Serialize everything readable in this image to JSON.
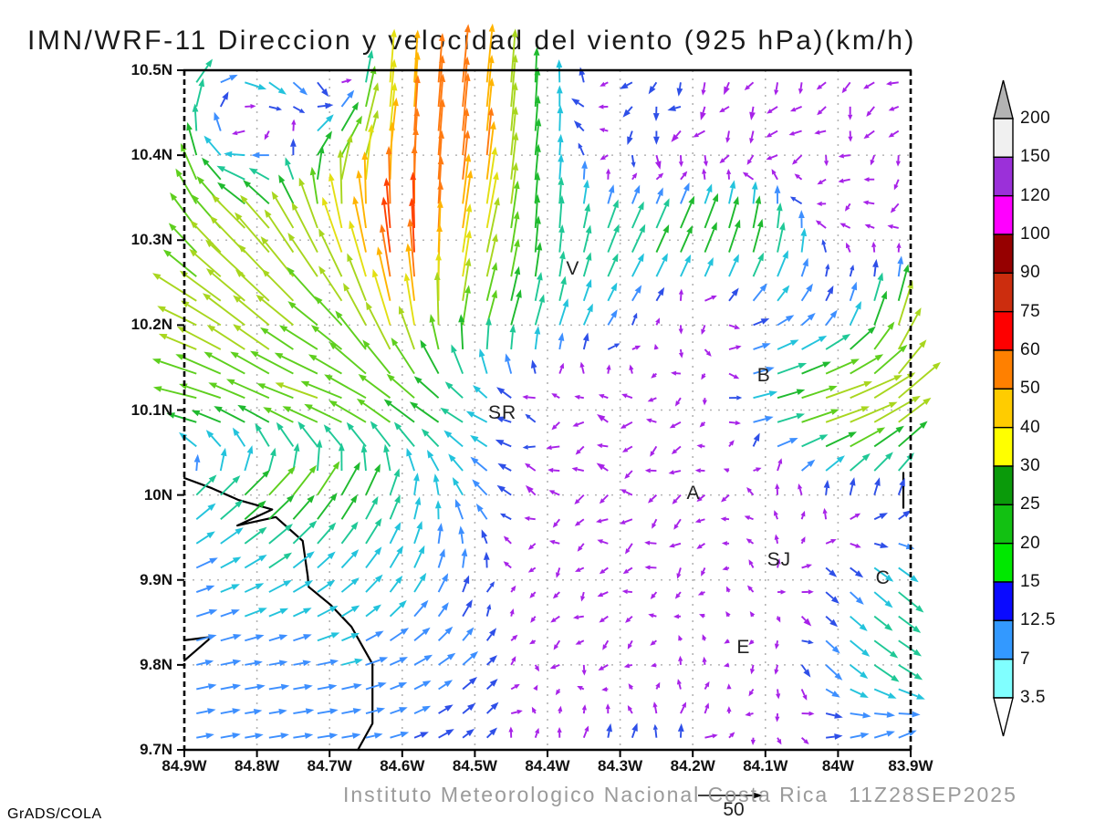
{
  "title": "IMN/WRF-11 Direccion y velocidad del viento (925 hPa)(km/h)",
  "watermark": "GrADS/COLA",
  "footer": {
    "institution": "Instituto Meteorologico Nacional Costa Rica",
    "datetime": "11Z28SEP2025"
  },
  "reference_vector": {
    "label": "50",
    "speed_kmh": 50
  },
  "chart_data": {
    "type": "vector-field",
    "description": "Wind direction and speed arrows at 925 hPa over Costa Rica, colored by speed (km/h), with dotted lat/lon grid, coastline and right-hand color scale",
    "x_axis": {
      "tick_labels": [
        "84.9W",
        "84.8W",
        "84.7W",
        "84.6W",
        "84.5W",
        "84.4W",
        "84.3W",
        "84.2W",
        "84.1W",
        "84W",
        "83.9W"
      ],
      "lon_values": [
        -84.9,
        -84.8,
        -84.7,
        -84.6,
        -84.5,
        -84.4,
        -84.3,
        -84.2,
        -84.1,
        -84.0,
        -83.9
      ],
      "range": [
        -84.9,
        -83.9
      ],
      "grid": "dotted"
    },
    "y_axis": {
      "tick_labels": [
        "10.5N",
        "10.4N",
        "10.3N",
        "10.2N",
        "10.1N",
        "10N",
        "9.9N",
        "9.8N",
        "9.7N"
      ],
      "lat_values": [
        10.5,
        10.4,
        10.3,
        10.2,
        10.1,
        10.0,
        9.9,
        9.8,
        9.7
      ],
      "range": [
        9.7,
        10.5
      ],
      "grid": "dotted"
    },
    "colorbar": {
      "labels_top_to_bottom": [
        "200",
        "150",
        "120",
        "100",
        "90",
        "75",
        "60",
        "50",
        "40",
        "30",
        "25",
        "20",
        "15",
        "12.5",
        "7",
        "3.5"
      ],
      "segment_colors_bottom_to_top": [
        "#80ffff",
        "#3399ff",
        "#0a0aff",
        "#00e800",
        "#12c112",
        "#0a9a0a",
        "#ffff00",
        "#ffcc00",
        "#ff8000",
        "#fe0000",
        "#cc2d0e",
        "#960000",
        "#ff00ff",
        "#9b30d9",
        "#f0f0f0"
      ],
      "over_arrow_color": "#b3b3b3",
      "under_arrow_color": "#ffffff",
      "outline_color": "#000000"
    },
    "arrow_speed_color_scale": [
      {
        "max_kmh": 7,
        "color": "#a722e8"
      },
      {
        "max_kmh": 11,
        "color": "#2e4fe8"
      },
      {
        "max_kmh": 14,
        "color": "#3d8fff"
      },
      {
        "max_kmh": 18,
        "color": "#23c3dc"
      },
      {
        "max_kmh": 23,
        "color": "#1fc896"
      },
      {
        "max_kmh": 28,
        "color": "#1fba2f"
      },
      {
        "max_kmh": 35,
        "color": "#5ecf1e"
      },
      {
        "max_kmh": 42,
        "color": "#a8d61e"
      },
      {
        "max_kmh": 48,
        "color": "#e3df12"
      },
      {
        "max_kmh": 55,
        "color": "#ffb400"
      },
      {
        "max_kmh": 62,
        "color": "#ff7a11"
      },
      {
        "max_kmh": 70,
        "color": "#ff4000"
      },
      {
        "max_kmh": 999,
        "color": "#ff1e78"
      }
    ],
    "wind_grid": {
      "units": "km/h",
      "lats": [
        10.5,
        10.4,
        10.3,
        10.2,
        10.1,
        10.0,
        9.9,
        9.8,
        9.7
      ],
      "lons": [
        -84.9,
        -84.8,
        -84.7,
        -84.6,
        -84.5,
        -84.4,
        -84.3,
        -84.2,
        -84.1,
        -84.0,
        -83.9
      ],
      "u": [
        [
          12,
          20,
          3,
          3,
          6,
          0,
          -4,
          -4,
          -5,
          -4,
          -3
        ],
        [
          -5,
          -18,
          18,
          3,
          6,
          2,
          -4,
          -3,
          -5,
          -4,
          -3
        ],
        [
          -20,
          -28,
          -15,
          -5,
          10,
          0,
          10,
          12,
          5,
          -4,
          -5
        ],
        [
          -35,
          -30,
          -25,
          -10,
          8,
          5,
          6,
          -2,
          12,
          6,
          12
        ],
        [
          -30,
          -30,
          -35,
          -28,
          -15,
          -6,
          -6,
          -5,
          20,
          45,
          30
        ],
        [
          12,
          20,
          15,
          5,
          -10,
          -6,
          -7,
          -5,
          -4,
          2,
          4
        ],
        [
          12,
          15,
          12,
          8,
          2,
          -3,
          -4,
          -3,
          1,
          8,
          18
        ],
        [
          12,
          12,
          14,
          12,
          8,
          -2,
          -3,
          1,
          -2,
          12,
          20
        ],
        [
          11,
          12,
          14,
          10,
          7,
          0,
          3,
          6,
          -3,
          12,
          10
        ]
      ],
      "v": [
        [
          18,
          -10,
          -14,
          52,
          58,
          22,
          -6,
          -6,
          -4,
          -5,
          -4
        ],
        [
          32,
          -5,
          25,
          55,
          62,
          20,
          -6,
          -6,
          -3,
          -5,
          -4
        ],
        [
          25,
          30,
          40,
          70,
          45,
          22,
          22,
          28,
          28,
          3,
          -3
        ],
        [
          15,
          25,
          20,
          45,
          30,
          18,
          8,
          -6,
          6,
          10,
          40
        ],
        [
          5,
          12,
          10,
          18,
          8,
          -2,
          0,
          -2,
          5,
          15,
          25
        ],
        [
          12,
          20,
          25,
          18,
          12,
          -1,
          -1,
          -2,
          2,
          10,
          10
        ],
        [
          4,
          8,
          10,
          14,
          10,
          -3,
          -2,
          -4,
          5,
          -8,
          -15
        ],
        [
          3,
          2,
          3,
          6,
          8,
          -4,
          -3,
          4,
          -4,
          -10,
          -12
        ],
        [
          2,
          2,
          2,
          3,
          6,
          5,
          10,
          6,
          -3,
          4,
          8
        ]
      ]
    },
    "stations": [
      {
        "label": "V",
        "lon": -84.365,
        "lat": 10.266
      },
      {
        "label": "SR",
        "lon": -84.462,
        "lat": 10.096
      },
      {
        "label": "B",
        "lon": -84.102,
        "lat": 10.14
      },
      {
        "label": "A",
        "lon": -84.199,
        "lat": 10.002
      },
      {
        "label": "SJ",
        "lon": -84.081,
        "lat": 9.923
      },
      {
        "label": "C",
        "lon": -83.938,
        "lat": 9.902
      },
      {
        "label": "E",
        "lon": -84.13,
        "lat": 9.82
      }
    ],
    "coastline": [
      [
        [
          -84.9,
          10.02
        ],
        [
          -84.862,
          10.008
        ],
        [
          -84.825,
          9.994
        ],
        [
          -84.796,
          9.987
        ],
        [
          -84.779,
          9.983
        ],
        [
          -84.827,
          9.964
        ],
        [
          -84.774,
          9.974
        ],
        [
          -84.737,
          9.946
        ],
        [
          -84.73,
          9.904
        ],
        [
          -84.729,
          9.892
        ],
        [
          -84.699,
          9.871
        ],
        [
          -84.67,
          9.845
        ],
        [
          -84.641,
          9.801
        ],
        [
          -84.641,
          9.731
        ],
        [
          -84.661,
          9.7
        ]
      ],
      [
        [
          -84.9,
          9.829
        ],
        [
          -84.862,
          9.833
        ],
        [
          -84.9,
          9.805
        ]
      ],
      [
        [
          -83.91,
          10.026
        ],
        [
          -83.91,
          9.985
        ]
      ]
    ]
  }
}
